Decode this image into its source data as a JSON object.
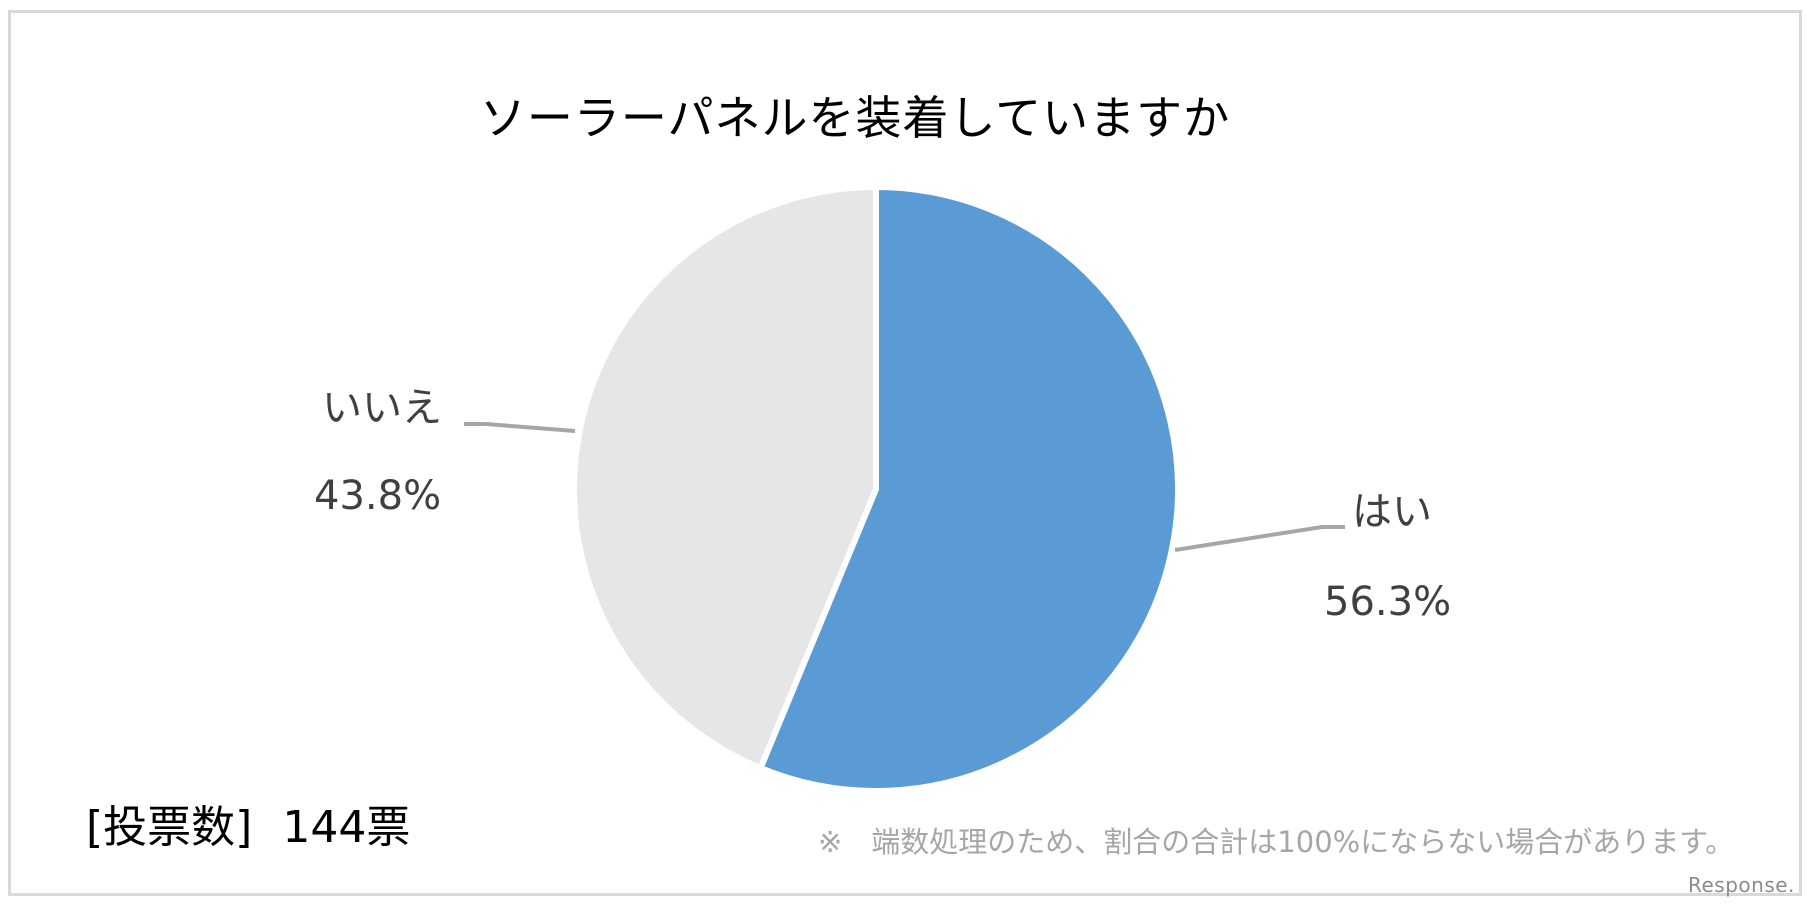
{
  "chart_data": {
    "type": "pie",
    "title": "ソーラーパネルを装着していますか",
    "categories": [
      "はい",
      "いいえ"
    ],
    "values": [
      56.3,
      43.8
    ],
    "unit": "%",
    "colors": [
      "#5b9bd5",
      "#e7e6e6"
    ],
    "start_angle": "12 o'clock, clockwise",
    "data_labels": [
      {
        "category": "はい",
        "value_label": "56.3%"
      },
      {
        "category": "いいえ",
        "value_label": "43.8%"
      }
    ],
    "legend": "none (category labels with leader lines)"
  },
  "header": {
    "title": "ソーラーパネルを装着していますか"
  },
  "labels": {
    "yes": {
      "name": "はい",
      "value": "56.3%"
    },
    "no": {
      "name": "いいえ",
      "value": "43.8%"
    }
  },
  "footer": {
    "votes_label": "[投票数]",
    "votes_value": "144票",
    "note": "※　端数処理のため、割合の合計は100%にならない場合があります。",
    "watermark": "Response."
  }
}
